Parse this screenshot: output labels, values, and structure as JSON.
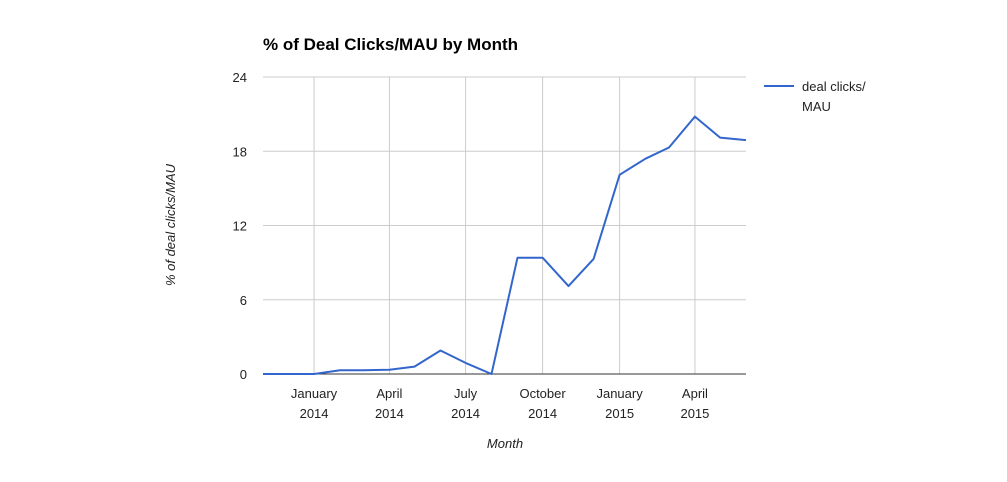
{
  "chart_data": {
    "type": "line",
    "title": "% of Deal Clicks/MAU by Month",
    "xlabel": "Month",
    "ylabel": "% of deal clicks/MAU",
    "ylim": [
      0,
      24
    ],
    "yticks": [
      "0",
      "6",
      "12",
      "18",
      "24"
    ],
    "xlim": [
      "2013-11-01",
      "2015-06-01"
    ],
    "xticks": [
      {
        "date": "2014-01-01",
        "line1": "January",
        "line2": "2014"
      },
      {
        "date": "2014-04-01",
        "line1": "April",
        "line2": "2014"
      },
      {
        "date": "2014-07-01",
        "line1": "July",
        "line2": "2014"
      },
      {
        "date": "2014-10-01",
        "line1": "October",
        "line2": "2014"
      },
      {
        "date": "2015-01-01",
        "line1": "January",
        "line2": "2015"
      },
      {
        "date": "2015-04-01",
        "line1": "April",
        "line2": "2015"
      }
    ],
    "grid": true,
    "legend_position": "right",
    "series": [
      {
        "name": "deal clicks/MAU",
        "legend_lines": [
          "deal clicks/",
          "MAU"
        ],
        "color": "#3366cc",
        "points": [
          {
            "x": "2013-11-01",
            "y": 0
          },
          {
            "x": "2013-12-01",
            "y": 0
          },
          {
            "x": "2014-01-01",
            "y": 0
          },
          {
            "x": "2014-02-01",
            "y": 0.3
          },
          {
            "x": "2014-03-01",
            "y": 0.3
          },
          {
            "x": "2014-04-01",
            "y": 0.35
          },
          {
            "x": "2014-05-01",
            "y": 0.6
          },
          {
            "x": "2014-06-01",
            "y": 1.9
          },
          {
            "x": "2014-07-01",
            "y": 0.9
          },
          {
            "x": "2014-08-01",
            "y": 0
          },
          {
            "x": "2014-09-01",
            "y": 9.4
          },
          {
            "x": "2014-10-01",
            "y": 9.4
          },
          {
            "x": "2014-11-01",
            "y": 7.1
          },
          {
            "x": "2014-12-01",
            "y": 9.3
          },
          {
            "x": "2015-01-01",
            "y": 16.1
          },
          {
            "x": "2015-02-01",
            "y": 17.4
          },
          {
            "x": "2015-03-01",
            "y": 18.3
          },
          {
            "x": "2015-04-01",
            "y": 20.8
          },
          {
            "x": "2015-05-01",
            "y": 19.1
          },
          {
            "x": "2015-06-01",
            "y": 18.9
          }
        ]
      }
    ]
  }
}
